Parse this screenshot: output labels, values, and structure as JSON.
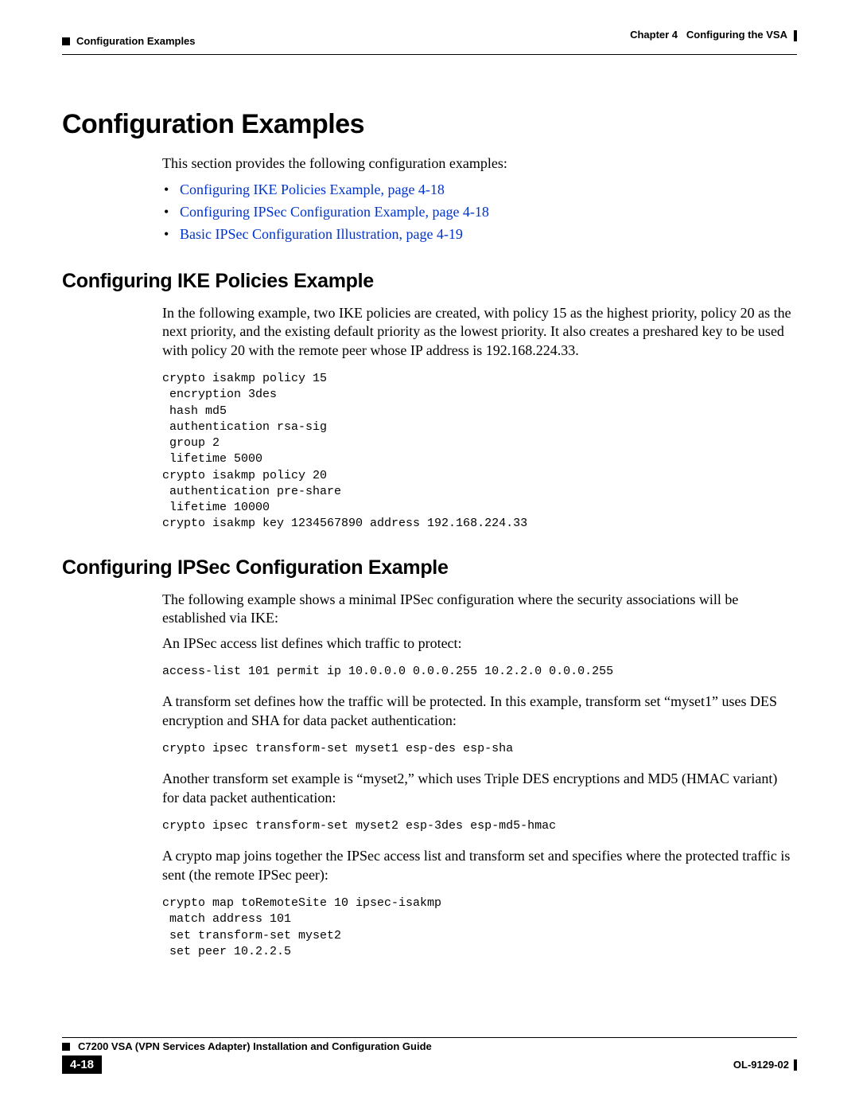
{
  "colors": {
    "link": "#0033cc",
    "text": "#000000",
    "bg": "#ffffff"
  },
  "typography": {
    "body_family": "Times New Roman",
    "heading_family": "Arial",
    "mono_family": "Courier New",
    "h1_size_pt": 26,
    "h2_size_pt": 19,
    "body_size_pt": 13,
    "code_size_pt": 11,
    "runhead_size_pt": 10
  },
  "header": {
    "left": "Configuration Examples",
    "right_chapter": "Chapter 4",
    "right_title": "Configuring the VSA"
  },
  "h1": "Configuration Examples",
  "intro": "This section provides the following configuration examples:",
  "links": [
    "Configuring IKE Policies Example, page 4-18",
    "Configuring IPSec Configuration Example, page 4-18",
    "Basic IPSec Configuration Illustration, page 4-19"
  ],
  "sec1": {
    "title": "Configuring IKE Policies Example",
    "para": "In the following example, two IKE policies are created, with policy 15 as the highest priority, policy 20 as the next priority, and the existing default priority as the lowest priority. It also creates a preshared key to be used with policy 20 with the remote peer whose IP address is 192.168.224.33.",
    "code": "crypto isakmp policy 15\n encryption 3des\n hash md5\n authentication rsa-sig\n group 2\n lifetime 5000\ncrypto isakmp policy 20\n authentication pre-share\n lifetime 10000\ncrypto isakmp key 1234567890 address 192.168.224.33"
  },
  "sec2": {
    "title": "Configuring IPSec Configuration Example",
    "p1": "The following example shows a minimal IPSec configuration where the security associations will be established via IKE:",
    "p2": "An IPSec access list defines which traffic to protect:",
    "code1": "access-list 101 permit ip 10.0.0.0 0.0.0.255 10.2.2.0 0.0.0.255",
    "p3": "A transform set defines how the traffic will be protected. In this example, transform set “myset1” uses DES encryption and SHA for data packet authentication:",
    "code2": "crypto ipsec transform-set myset1 esp-des esp-sha",
    "p4": "Another transform set example is “myset2,” which uses Triple DES encryptions and MD5 (HMAC variant) for data packet authentication:",
    "code3": "crypto ipsec transform-set myset2 esp-3des esp-md5-hmac",
    "p5": "A crypto map joins together the IPSec access list and transform set and specifies where the protected traffic is sent (the remote IPSec peer):",
    "code4": "crypto map toRemoteSite 10 ipsec-isakmp\n match address 101\n set transform-set myset2\n set peer 10.2.2.5"
  },
  "footer": {
    "guide": "C7200 VSA (VPN Services Adapter) Installation and Configuration Guide",
    "page": "4-18",
    "docid": "OL-9129-02"
  }
}
